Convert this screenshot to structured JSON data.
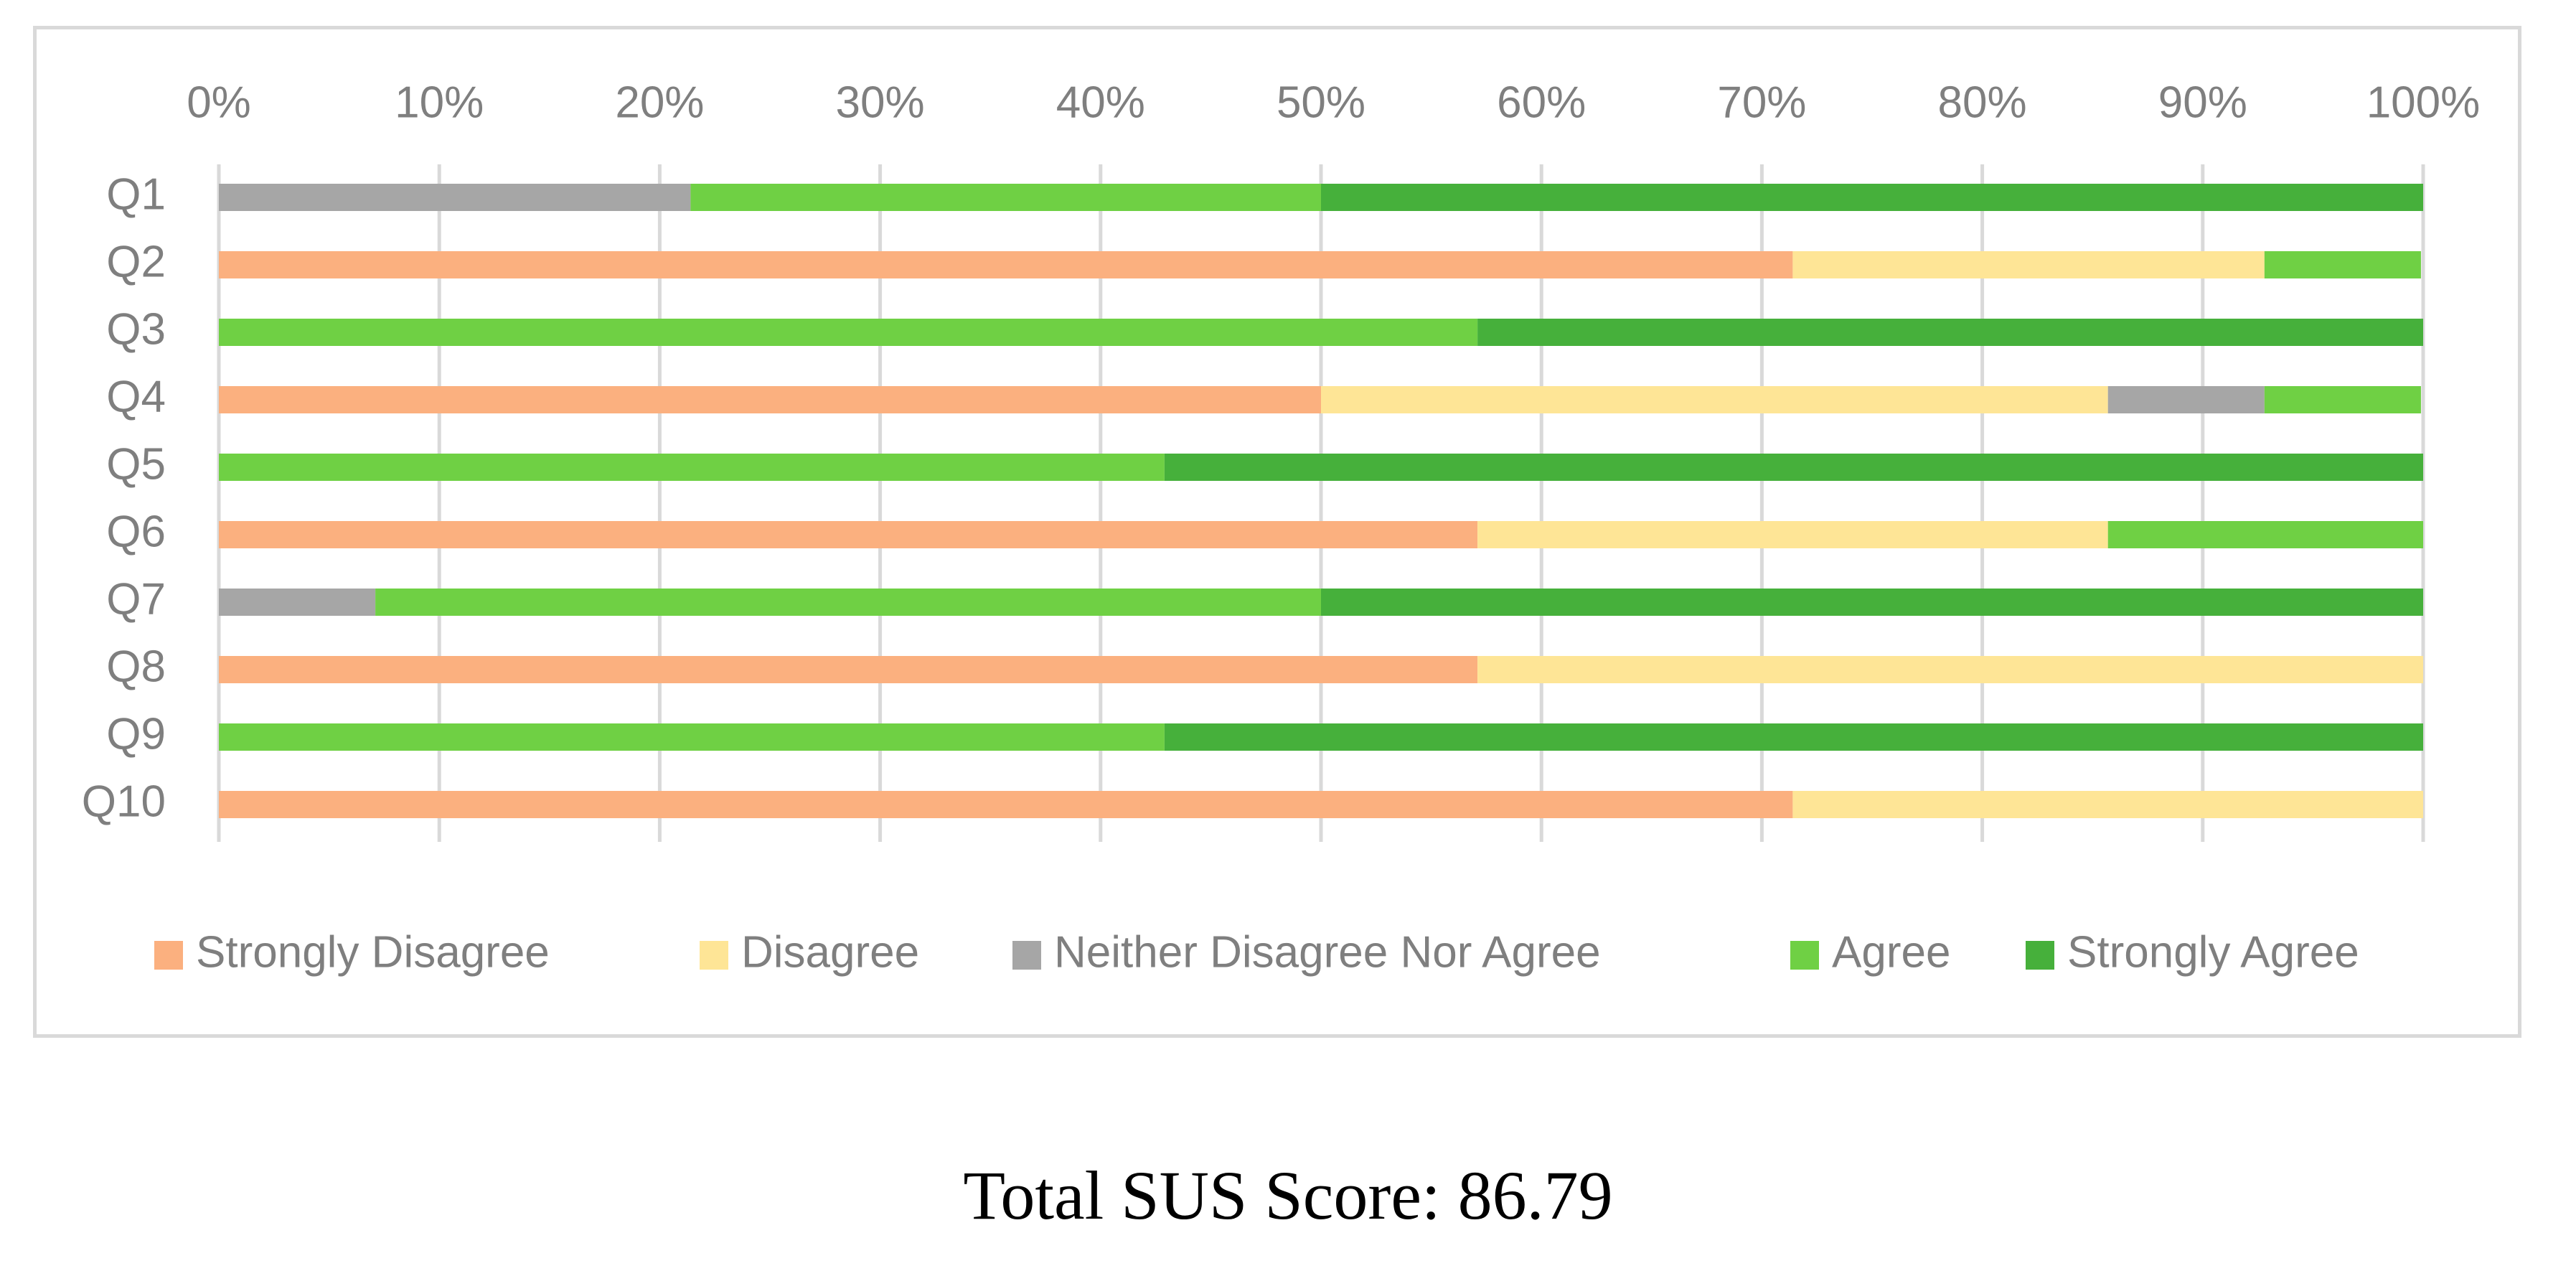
{
  "chart_data": {
    "type": "bar",
    "orientation": "horizontal",
    "stacked": "percent",
    "categories": [
      "Q1",
      "Q2",
      "Q3",
      "Q4",
      "Q5",
      "Q6",
      "Q7",
      "Q8",
      "Q9",
      "Q10"
    ],
    "series": [
      {
        "name": "Strongly Disagree",
        "color": "#fbb07f",
        "values": [
          0,
          71.4,
          0,
          50.0,
          0,
          57.1,
          0,
          57.1,
          0,
          71.4
        ]
      },
      {
        "name": "Disagree",
        "color": "#fee596",
        "values": [
          0,
          21.4,
          0,
          35.7,
          0,
          28.6,
          0,
          42.9,
          0,
          28.6
        ]
      },
      {
        "name": "Neither Disagree Nor Agree",
        "color": "#a6a6a6",
        "values": [
          21.4,
          0,
          0,
          7.1,
          0,
          0,
          7.1,
          0,
          0,
          0
        ]
      },
      {
        "name": "Agree",
        "color": "#6fd044",
        "values": [
          28.6,
          7.1,
          57.1,
          7.1,
          42.9,
          14.3,
          42.9,
          0,
          42.9,
          0
        ]
      },
      {
        "name": "Strongly Agree",
        "color": "#46b03b",
        "values": [
          50.0,
          0,
          42.9,
          0,
          57.1,
          0,
          50.0,
          0,
          57.1,
          0
        ]
      }
    ],
    "xlim": [
      0,
      100
    ],
    "x_ticks": [
      "0%",
      "10%",
      "20%",
      "30%",
      "40%",
      "50%",
      "60%",
      "70%",
      "80%",
      "90%",
      "100%"
    ],
    "x_axis_position": "top",
    "grid": "vertical",
    "legend_position": "bottom",
    "title": "",
    "xlabel": "",
    "ylabel": ""
  },
  "caption": "Total SUS Score: 86.79"
}
